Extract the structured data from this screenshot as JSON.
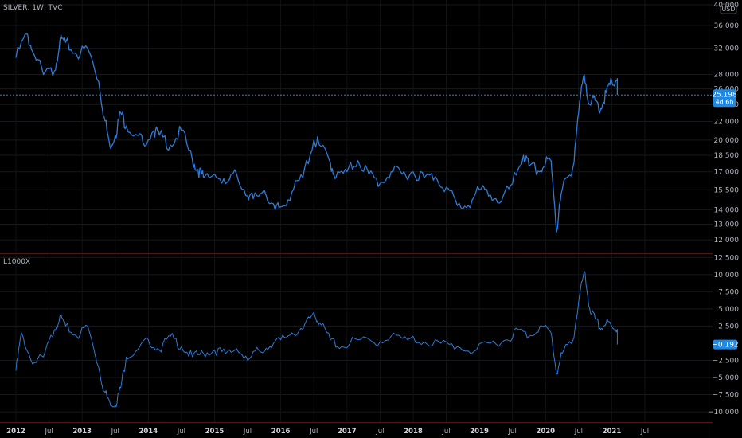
{
  "main_title": "SILVER, 1W, TVC",
  "currency": "USD",
  "price_badge": {
    "value": "25.198",
    "sub": "4d 6h"
  },
  "indicator_title": "L1000X",
  "indicator_badge": {
    "value": "-0.192"
  },
  "colors": {
    "background": "#000000",
    "line": "#2e7bd6",
    "badge": "#1e88e5",
    "grid": "#1b1d22",
    "divider": "#4a1a1a"
  },
  "chart_data": [
    {
      "type": "line",
      "title": "SILVER, 1W, TVC",
      "y_axis": {
        "ylim": [
          11.2,
          41.0
        ],
        "scale": "log",
        "ticks": [
          "40.000",
          "36.000",
          "32.000",
          "28.000",
          "26.000",
          "24.000",
          "22.000",
          "20.000",
          "18.500",
          "17.000",
          "15.500",
          "14.000",
          "13.000",
          "12.000"
        ]
      },
      "last_value": 25.198,
      "x": [
        "2012-01",
        "2012-03",
        "2012-04",
        "2012-06",
        "2012-08",
        "2012-09",
        "2012-10",
        "2012-12",
        "2013-02",
        "2013-04",
        "2013-05",
        "2013-06",
        "2013-07",
        "2013-08",
        "2013-09",
        "2013-11",
        "2013-12",
        "2014-02",
        "2014-03",
        "2014-05",
        "2014-07",
        "2014-09",
        "2014-10",
        "2014-11",
        "2015-01",
        "2015-03",
        "2015-05",
        "2015-07",
        "2015-08",
        "2015-10",
        "2015-12",
        "2016-01",
        "2016-03",
        "2016-05",
        "2016-07",
        "2016-08",
        "2016-10",
        "2016-11",
        "2017-01",
        "2017-03",
        "2017-05",
        "2017-07",
        "2017-09",
        "2017-11",
        "2018-01",
        "2018-03",
        "2018-05",
        "2018-07",
        "2018-09",
        "2018-11",
        "2019-01",
        "2019-03",
        "2019-05",
        "2019-07",
        "2019-09",
        "2019-10",
        "2019-12",
        "2020-01",
        "2020-02",
        "2020-03",
        "2020-04",
        "2020-06",
        "2020-07",
        "2020-08",
        "2020-09",
        "2020-10",
        "2020-11",
        "2020-12",
        "2021-01",
        "2021-02",
        "2021-02"
      ],
      "values": [
        30.5,
        34.5,
        31.5,
        28.0,
        28.5,
        33.5,
        33.0,
        31.0,
        32.0,
        27.0,
        22.5,
        19.5,
        20.5,
        23.0,
        21.5,
        20.5,
        19.8,
        21.0,
        20.5,
        19.5,
        21.0,
        18.0,
        17.2,
        16.5,
        16.8,
        16.0,
        16.8,
        15.0,
        14.8,
        15.5,
        14.0,
        14.2,
        15.3,
        16.5,
        20.0,
        19.5,
        17.8,
        16.5,
        17.0,
        18.0,
        16.8,
        16.0,
        17.0,
        16.8,
        17.0,
        16.5,
        16.6,
        15.7,
        14.3,
        14.3,
        15.5,
        15.1,
        14.6,
        16.0,
        18.5,
        17.5,
        17.0,
        17.8,
        18.0,
        12.5,
        15.5,
        17.5,
        23.0,
        28.0,
        24.0,
        24.5,
        23.5,
        25.5,
        27.0,
        27.3,
        25.2
      ]
    },
    {
      "type": "line",
      "title": "L1000X",
      "y_axis": {
        "ylim": [
          -11.5,
          13.0
        ],
        "ticks": [
          "12.500",
          "10.000",
          "7.500",
          "5.000",
          "2.500",
          "-2.500",
          "-5.000",
          "-7.500",
          "-10.000"
        ]
      },
      "last_value": -0.192,
      "x": [
        "2012-01",
        "2012-02",
        "2012-04",
        "2012-06",
        "2012-08",
        "2012-09",
        "2012-10",
        "2012-12",
        "2013-02",
        "2013-04",
        "2013-05",
        "2013-06",
        "2013-07",
        "2013-08",
        "2013-09",
        "2013-11",
        "2014-01",
        "2014-03",
        "2014-05",
        "2014-07",
        "2014-09",
        "2014-11",
        "2015-01",
        "2015-03",
        "2015-05",
        "2015-07",
        "2015-09",
        "2015-11",
        "2016-01",
        "2016-03",
        "2016-05",
        "2016-07",
        "2016-08",
        "2016-10",
        "2016-12",
        "2017-03",
        "2017-06",
        "2017-09",
        "2017-12",
        "2018-03",
        "2018-06",
        "2018-09",
        "2018-12",
        "2019-03",
        "2019-06",
        "2019-08",
        "2019-10",
        "2019-12",
        "2020-02",
        "2020-03",
        "2020-04",
        "2020-06",
        "2020-07",
        "2020-08",
        "2020-09",
        "2020-10",
        "2020-11",
        "2020-12",
        "2021-01",
        "2021-02",
        "2021-02"
      ],
      "values": [
        -4.0,
        1.5,
        -3.0,
        -2.0,
        2.0,
        4.0,
        2.5,
        1.0,
        2.5,
        -3.5,
        -7.0,
        -8.5,
        -9.0,
        -6.5,
        -2.0,
        -1.0,
        0.5,
        -1.0,
        1.0,
        -0.5,
        -2.0,
        -1.5,
        -1.0,
        -1.5,
        -0.8,
        -2.5,
        -1.0,
        -0.5,
        0.5,
        1.5,
        2.0,
        4.5,
        3.0,
        0.5,
        -0.5,
        0.5,
        0.0,
        1.0,
        0.5,
        0.2,
        0.0,
        -0.5,
        -1.2,
        0.0,
        0.5,
        2.0,
        1.0,
        2.5,
        1.5,
        -4.5,
        -1.5,
        0.5,
        6.0,
        10.5,
        5.0,
        3.5,
        2.0,
        3.0,
        2.5,
        2.0,
        -0.192
      ]
    }
  ],
  "x_axis": {
    "labels": [
      {
        "text": "2012",
        "date": "2012-01",
        "year": true
      },
      {
        "text": "Jul",
        "date": "2012-07",
        "year": false
      },
      {
        "text": "2013",
        "date": "2013-01",
        "year": true
      },
      {
        "text": "Jul",
        "date": "2013-07",
        "year": false
      },
      {
        "text": "2014",
        "date": "2014-01",
        "year": true
      },
      {
        "text": "Jul",
        "date": "2014-07",
        "year": false
      },
      {
        "text": "2015",
        "date": "2015-01",
        "year": true
      },
      {
        "text": "Jul",
        "date": "2015-07",
        "year": false
      },
      {
        "text": "2016",
        "date": "2016-01",
        "year": true
      },
      {
        "text": "Jul",
        "date": "2016-07",
        "year": false
      },
      {
        "text": "2017",
        "date": "2017-01",
        "year": true
      },
      {
        "text": "Jul",
        "date": "2017-07",
        "year": false
      },
      {
        "text": "2018",
        "date": "2018-01",
        "year": true
      },
      {
        "text": "Jul",
        "date": "2018-07",
        "year": false
      },
      {
        "text": "2019",
        "date": "2019-01",
        "year": true
      },
      {
        "text": "Jul",
        "date": "2019-07",
        "year": false
      },
      {
        "text": "2020",
        "date": "2020-01",
        "year": true
      },
      {
        "text": "Jul",
        "date": "2020-07",
        "year": false
      },
      {
        "text": "2021",
        "date": "2021-01",
        "year": true
      },
      {
        "text": "Jul",
        "date": "2021-07",
        "year": false
      }
    ]
  }
}
